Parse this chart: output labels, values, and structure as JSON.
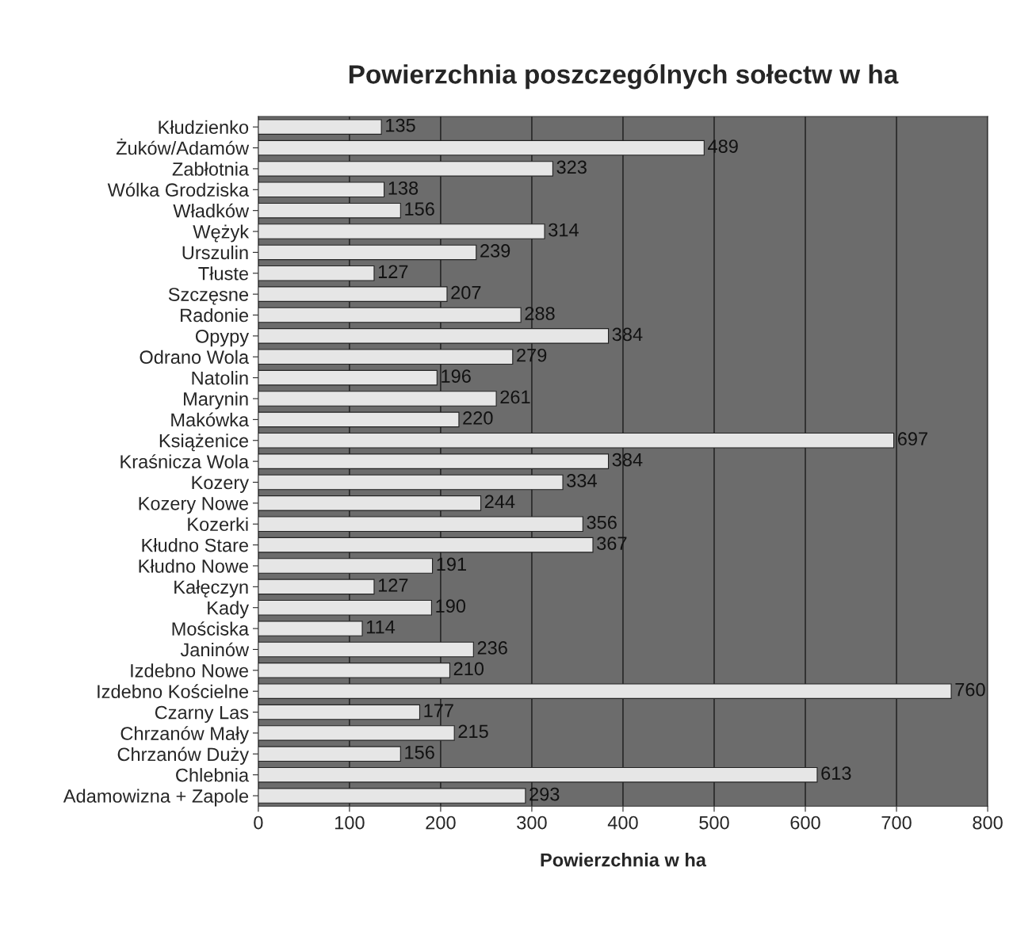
{
  "chart_data": {
    "type": "bar",
    "orientation": "horizontal",
    "title": "Powierzchnia poszczególnych sołectw w ha",
    "xlabel": "Powierzchnia w ha",
    "categories": [
      "Kłudzienko",
      "Żuków/Adamów",
      "Zabłotnia",
      "Wólka Grodziska",
      "Władków",
      "Wężyk",
      "Urszulin",
      "Tłuste",
      "Szczęsne",
      "Radonie",
      "Opypy",
      "Odrano Wola",
      "Natolin",
      "Marynin",
      "Makówka",
      "Książenice",
      "Kraśnicza Wola",
      "Kozery",
      "Kozery Nowe",
      "Kozerki",
      "Kłudno Stare",
      "Kłudno Nowe",
      "Kałęczyn",
      "Kady",
      "Mościska",
      "Janinów",
      "Izdebno Nowe",
      "Izdebno Kościelne",
      "Czarny Las",
      "Chrzanów Mały",
      "Chrzanów Duży",
      "Chlebnia",
      "Adamowizna + Zapole"
    ],
    "values": [
      135,
      489,
      323,
      138,
      156,
      314,
      239,
      127,
      207,
      288,
      384,
      279,
      196,
      261,
      220,
      697,
      384,
      334,
      244,
      356,
      367,
      191,
      127,
      190,
      114,
      236,
      210,
      760,
      177,
      215,
      156,
      613,
      293
    ],
    "color": "#e6e6e6",
    "xlim": [
      0,
      800
    ],
    "xticks": [
      0,
      100,
      200,
      300,
      400,
      500,
      600,
      700,
      800
    ],
    "grid": "x",
    "data_labels": true,
    "legend": false
  }
}
